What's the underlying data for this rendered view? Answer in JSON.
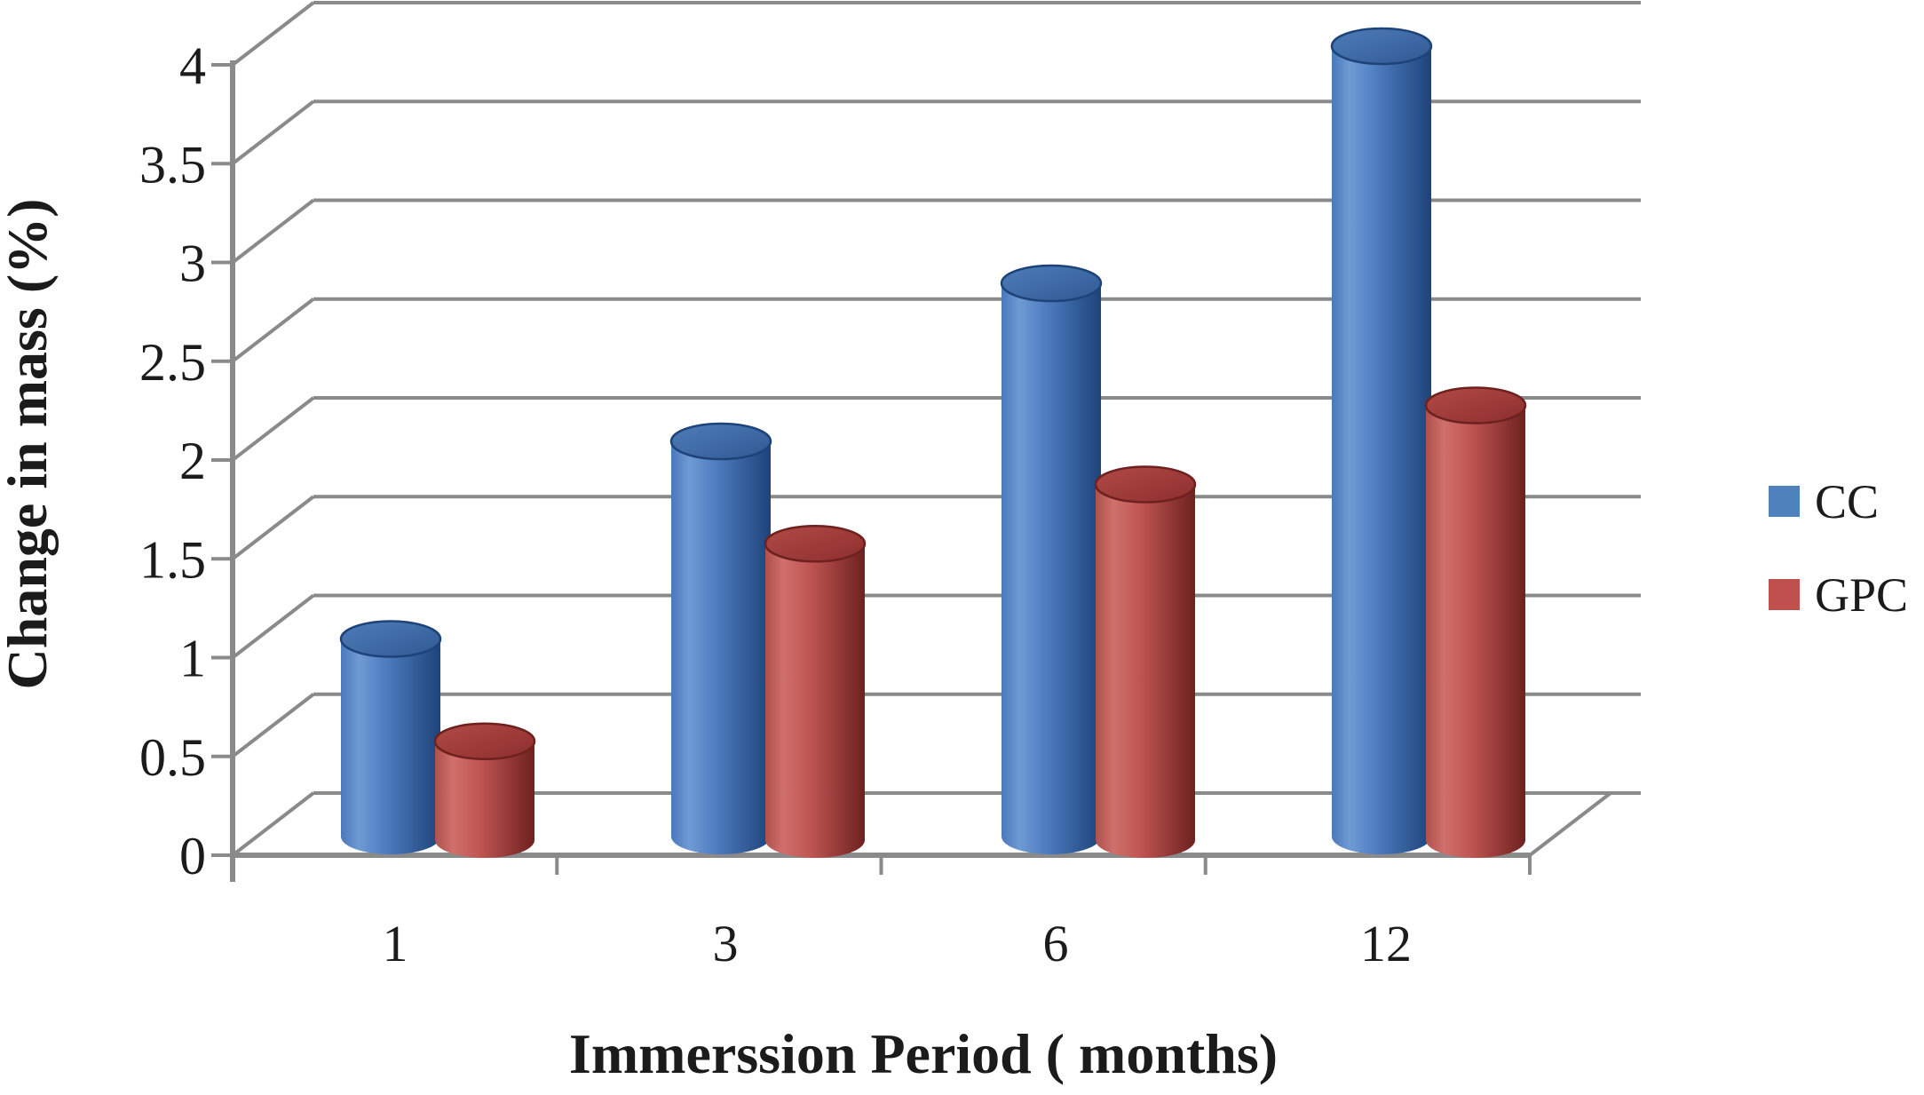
{
  "chart_data": {
    "type": "bar",
    "subtype": "3d-cylinder",
    "title": "",
    "xlabel": "Immerssion Period ( months)",
    "ylabel": "Change in mass (%)",
    "categories": [
      "1",
      "3",
      "6",
      "12"
    ],
    "series": [
      {
        "name": "CC",
        "color": "#4F81BD",
        "values": [
          1.0,
          2.0,
          2.8,
          4.0
        ]
      },
      {
        "name": "GPC",
        "color": "#C0504D",
        "values": [
          0.5,
          1.5,
          1.8,
          2.2
        ]
      }
    ],
    "ylim": [
      0,
      4
    ],
    "ytick_step": 0.5,
    "ytick_labels": [
      "0",
      "0.5",
      "1",
      "1.5",
      "2",
      "2.5",
      "3",
      "3.5",
      "4"
    ],
    "grid": true,
    "grid_color": "#8a8a8a",
    "legend_position": "right",
    "background": "#ffffff"
  }
}
